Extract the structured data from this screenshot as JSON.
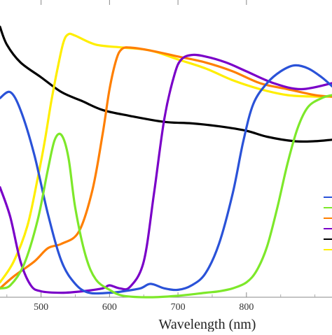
{
  "chart_data": {
    "type": "line",
    "title": "",
    "xlabel": "Wavelength (nm)",
    "ylabel": "",
    "xlim": [
      440,
      925
    ],
    "ylim": [
      0,
      1
    ],
    "x_ticks": [
      500,
      600,
      700,
      800
    ],
    "grid": false,
    "legend": "right",
    "series": [
      {
        "color": "#000000",
        "points": [
          [
            440,
            0.91
          ],
          [
            450,
            0.85
          ],
          [
            470,
            0.79
          ],
          [
            500,
            0.74
          ],
          [
            530,
            0.69
          ],
          [
            560,
            0.66
          ],
          [
            590,
            0.63
          ],
          [
            630,
            0.61
          ],
          [
            680,
            0.59
          ],
          [
            720,
            0.585
          ],
          [
            760,
            0.575
          ],
          [
            800,
            0.56
          ],
          [
            830,
            0.54
          ],
          [
            870,
            0.525
          ],
          [
            900,
            0.525
          ],
          [
            925,
            0.53
          ]
        ]
      },
      {
        "color": "#ffee00",
        "points": [
          [
            440,
            0.05
          ],
          [
            460,
            0.12
          ],
          [
            480,
            0.24
          ],
          [
            495,
            0.4
          ],
          [
            505,
            0.52
          ],
          [
            515,
            0.66
          ],
          [
            525,
            0.78
          ],
          [
            533,
            0.86
          ],
          [
            540,
            0.885
          ],
          [
            550,
            0.88
          ],
          [
            580,
            0.85
          ],
          [
            620,
            0.84
          ],
          [
            660,
            0.83
          ],
          [
            700,
            0.8
          ],
          [
            740,
            0.77
          ],
          [
            780,
            0.73
          ],
          [
            820,
            0.7
          ],
          [
            860,
            0.68
          ],
          [
            900,
            0.675
          ],
          [
            925,
            0.675
          ]
        ]
      },
      {
        "color": "#ff7f00",
        "points": [
          [
            440,
            0.03
          ],
          [
            460,
            0.07
          ],
          [
            490,
            0.12
          ],
          [
            510,
            0.165
          ],
          [
            530,
            0.18
          ],
          [
            555,
            0.22
          ],
          [
            575,
            0.36
          ],
          [
            590,
            0.55
          ],
          [
            600,
            0.7
          ],
          [
            610,
            0.8
          ],
          [
            618,
            0.835
          ],
          [
            630,
            0.84
          ],
          [
            660,
            0.83
          ],
          [
            700,
            0.81
          ],
          [
            740,
            0.79
          ],
          [
            780,
            0.76
          ],
          [
            820,
            0.72
          ],
          [
            860,
            0.7
          ],
          [
            900,
            0.68
          ],
          [
            925,
            0.675
          ]
        ]
      },
      {
        "color": "#7a00c8",
        "points": [
          [
            440,
            0.37
          ],
          [
            455,
            0.27
          ],
          [
            470,
            0.12
          ],
          [
            485,
            0.04
          ],
          [
            500,
            0.02
          ],
          [
            530,
            0.015
          ],
          [
            560,
            0.02
          ],
          [
            590,
            0.03
          ],
          [
            600,
            0.04
          ],
          [
            615,
            0.03
          ],
          [
            630,
            0.035
          ],
          [
            650,
            0.12
          ],
          [
            665,
            0.35
          ],
          [
            680,
            0.6
          ],
          [
            695,
            0.75
          ],
          [
            705,
            0.8
          ],
          [
            720,
            0.815
          ],
          [
            740,
            0.81
          ],
          [
            770,
            0.79
          ],
          [
            800,
            0.76
          ],
          [
            840,
            0.72
          ],
          [
            880,
            0.7
          ],
          [
            925,
            0.72
          ]
        ]
      },
      {
        "color": "#2a52d8",
        "points": [
          [
            440,
            0.67
          ],
          [
            455,
            0.69
          ],
          [
            470,
            0.63
          ],
          [
            490,
            0.48
          ],
          [
            510,
            0.28
          ],
          [
            530,
            0.12
          ],
          [
            550,
            0.045
          ],
          [
            570,
            0.015
          ],
          [
            600,
            0.015
          ],
          [
            620,
            0.02
          ],
          [
            645,
            0.03
          ],
          [
            660,
            0.045
          ],
          [
            680,
            0.03
          ],
          [
            700,
            0.025
          ],
          [
            720,
            0.04
          ],
          [
            740,
            0.08
          ],
          [
            760,
            0.18
          ],
          [
            780,
            0.35
          ],
          [
            795,
            0.52
          ],
          [
            810,
            0.65
          ],
          [
            830,
            0.72
          ],
          [
            850,
            0.76
          ],
          [
            870,
            0.78
          ],
          [
            890,
            0.77
          ],
          [
            910,
            0.74
          ],
          [
            925,
            0.71
          ]
        ]
      },
      {
        "color": "#7de82a",
        "points": [
          [
            440,
            0.03
          ],
          [
            455,
            0.04
          ],
          [
            475,
            0.11
          ],
          [
            495,
            0.26
          ],
          [
            510,
            0.43
          ],
          [
            520,
            0.53
          ],
          [
            530,
            0.545
          ],
          [
            540,
            0.47
          ],
          [
            550,
            0.3
          ],
          [
            565,
            0.14
          ],
          [
            580,
            0.06
          ],
          [
            600,
            0.025
          ],
          [
            620,
            0.005
          ],
          [
            660,
            0.0
          ],
          [
            700,
            0.005
          ],
          [
            740,
            0.015
          ],
          [
            760,
            0.02
          ],
          [
            780,
            0.03
          ],
          [
            800,
            0.05
          ],
          [
            815,
            0.09
          ],
          [
            830,
            0.17
          ],
          [
            845,
            0.3
          ],
          [
            860,
            0.45
          ],
          [
            875,
            0.57
          ],
          [
            890,
            0.64
          ],
          [
            910,
            0.67
          ],
          [
            925,
            0.68
          ]
        ]
      }
    ]
  }
}
